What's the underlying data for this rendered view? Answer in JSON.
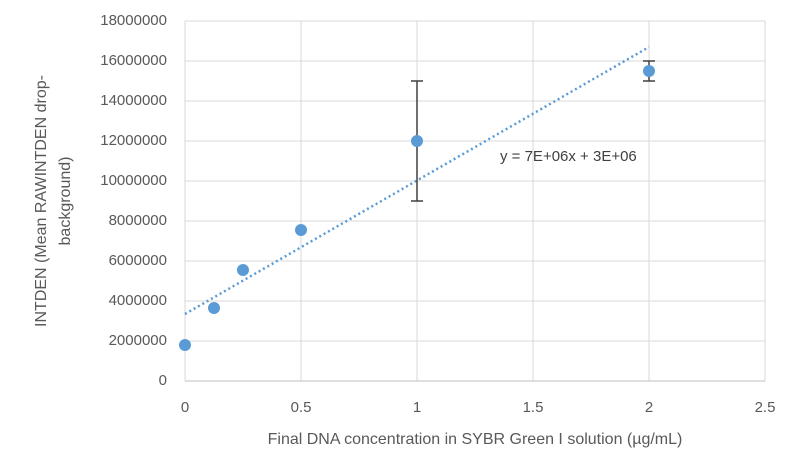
{
  "chart_data": {
    "type": "scatter",
    "x_label": "Final DNA concentration in SYBR Green I solution (µg/mL)",
    "y_label": [
      "INTDEN (Mean RAWINTDEN drop-",
      "background)"
    ],
    "series": [
      {
        "color": "#5b9bd5",
        "x": [
          0,
          0.125,
          0.25,
          0.5,
          1,
          2
        ],
        "values": [
          1800000,
          3650000,
          5550000,
          7550000,
          12000000,
          15500000
        ],
        "errors": [
          null,
          null,
          null,
          null,
          3000000,
          500000
        ]
      }
    ],
    "trendline": {
      "x": [
        0,
        2
      ],
      "values": [
        3350000,
        16700000
      ],
      "color": "#5b9bd5",
      "label": "y = 7E+06x + 3E+06"
    },
    "xlim": [
      0,
      2.5
    ],
    "xticks": [
      0,
      0.5,
      1,
      1.5,
      2,
      2.5
    ],
    "ylim": [
      0,
      18000000
    ],
    "yticks": [
      0,
      2000000,
      4000000,
      6000000,
      8000000,
      10000000,
      12000000,
      14000000,
      16000000,
      18000000
    ],
    "grid": true
  }
}
